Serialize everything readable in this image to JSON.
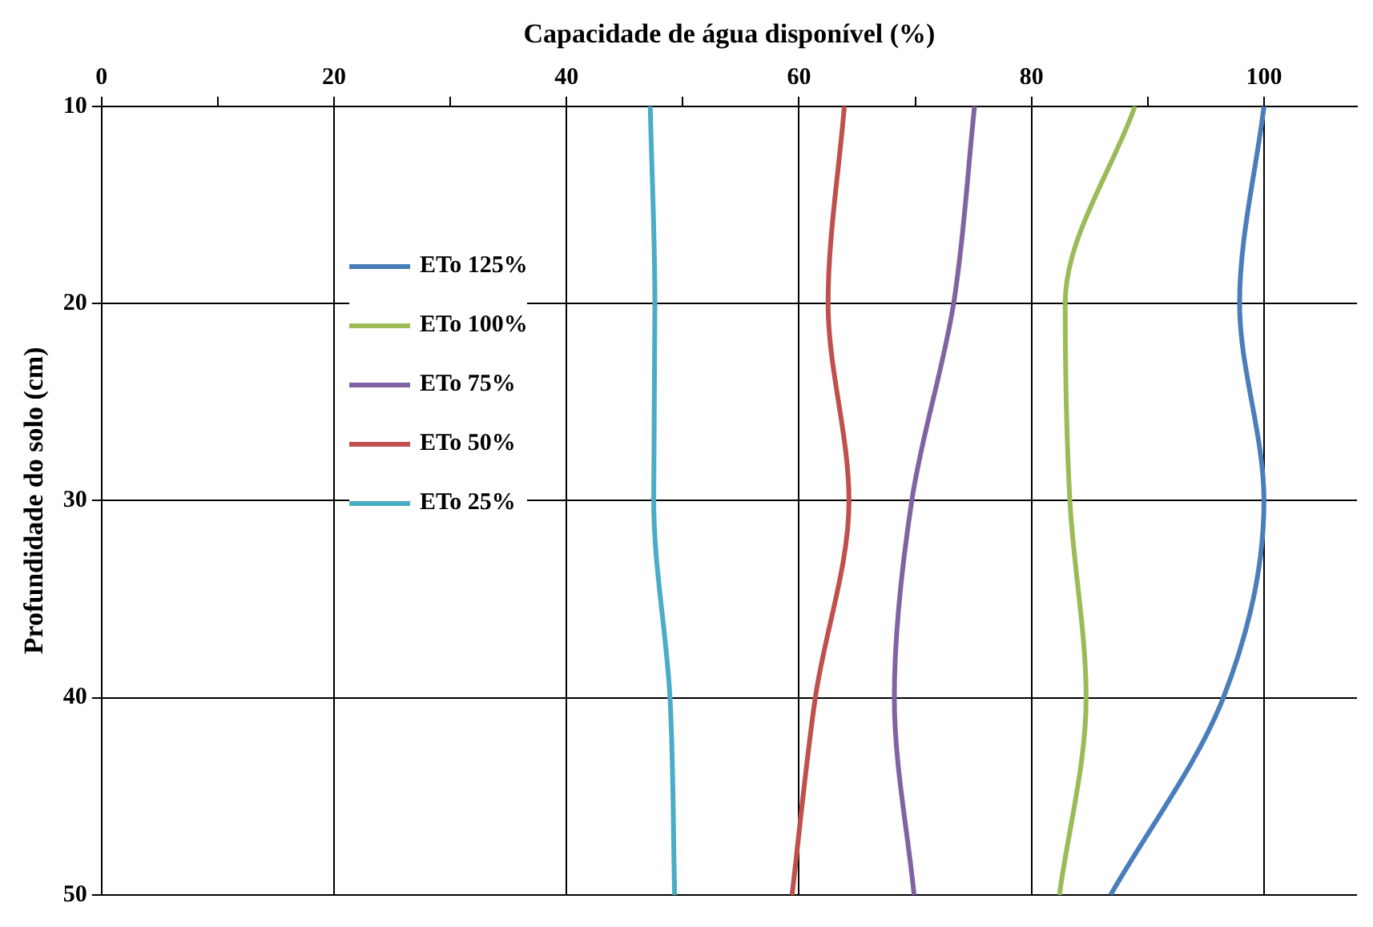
{
  "chart_data": {
    "type": "line",
    "orientation": "horizontal",
    "xlabel": "Capacidade de água disponível (%)",
    "ylabel": "Profundidade do solo (cm)",
    "x": [
      10,
      20,
      30,
      40,
      50
    ],
    "series": [
      {
        "name": "ETo 125%",
        "color": "#4a7ebb",
        "values": [
          100,
          97.9,
          100,
          96.5,
          86.8
        ]
      },
      {
        "name": "ETo 100%",
        "color": "#9bbb59",
        "values": [
          88.9,
          82.9,
          83.3,
          84.7,
          82.4
        ]
      },
      {
        "name": "ETo 75%",
        "color": "#8064a2",
        "values": [
          75.1,
          73.3,
          69.7,
          68.2,
          69.9
        ]
      },
      {
        "name": "ETo 50%",
        "color": "#c0504d",
        "values": [
          63.9,
          62.5,
          64.3,
          61.4,
          59.4
        ]
      },
      {
        "name": "ETo 25%",
        "color": "#4bacc6",
        "values": [
          47.2,
          47.6,
          47.5,
          48.9,
          49.3
        ]
      }
    ],
    "xlim": [
      0,
      108
    ],
    "xticks": [
      0,
      {
        "value": 10,
        "label": null
      },
      20,
      {
        "value": 30,
        "label": null
      },
      40,
      {
        "value": 50,
        "label": null
      },
      60,
      {
        "value": 70,
        "label": null
      },
      80,
      {
        "value": 90,
        "label": null
      },
      100
    ],
    "ylim": [
      50,
      10
    ],
    "yticks": [
      10,
      20,
      30,
      40,
      50
    ],
    "grid": true,
    "legend": "top left",
    "marker": "none",
    "line_style": "solid"
  }
}
